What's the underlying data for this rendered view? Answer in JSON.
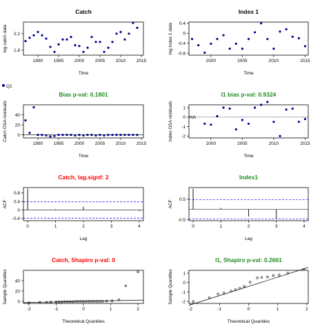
{
  "colors": {
    "black": "#000000",
    "green": "#228b22",
    "red": "#ff0000",
    "blue": "#0000ff",
    "navy": "#00008b",
    "gray": "#808080"
  },
  "legend": {
    "label": "Q1"
  },
  "chart_data": [
    {
      "id": "catch",
      "type": "scatter",
      "title": "Catch",
      "title_color": "#000000",
      "xlabel": "Time",
      "ylabel": "log catch data",
      "xlim": [
        1986.5,
        2015.5
      ],
      "ylim": [
        1.68,
        2.48
      ],
      "xticks": [
        1990,
        1995,
        2000,
        2005,
        2010,
        2015
      ],
      "yticks": [
        1.8,
        2.2
      ],
      "series": [
        {
          "x": [
            1987,
            1988,
            1989,
            1990,
            1991,
            1992,
            1993,
            1994,
            1995,
            1996,
            1997,
            1998,
            1999,
            2000,
            2001,
            2002,
            2003,
            2004,
            2005,
            2006,
            2007,
            2008,
            2009,
            2010,
            2011,
            2012,
            2013,
            2014
          ],
          "y": [
            2.02,
            2.1,
            2.16,
            2.24,
            2.16,
            2.08,
            1.88,
            1.76,
            1.94,
            2.06,
            2.06,
            2.12,
            1.92,
            1.9,
            1.76,
            1.86,
            2.12,
            2.0,
            2.0,
            1.76,
            1.86,
            2.0,
            2.2,
            2.24,
            2.06,
            2.2,
            2.46,
            2.34
          ]
        }
      ]
    },
    {
      "id": "index1",
      "type": "scatter",
      "title": "Index 1",
      "title_color": "#000000",
      "xlabel": "Time",
      "ylabel": "log index 1 data",
      "xlim": [
        1996.5,
        2015.5
      ],
      "ylim": [
        -0.88,
        0.45
      ],
      "xticks": [
        2000,
        2005,
        2010,
        2015
      ],
      "yticks": [
        -0.8,
        -0.4,
        0.0,
        0.4
      ],
      "series": [
        {
          "x": [
            1997,
            1998,
            1999,
            2000,
            2001,
            2002,
            2003,
            2004,
            2005,
            2006,
            2007,
            2008,
            2009,
            2010,
            2011,
            2012,
            2013,
            2014,
            2015
          ],
          "y": [
            -0.23,
            -0.48,
            -0.78,
            -0.42,
            -0.23,
            -0.08,
            -0.62,
            -0.42,
            -0.62,
            -0.23,
            0.04,
            0.4,
            -0.23,
            -0.62,
            0.07,
            0.16,
            -0.14,
            -0.2,
            -0.52
          ]
        }
      ]
    },
    {
      "id": "bias-catch",
      "type": "scatter",
      "title": "Bias p-val: 0.1801",
      "title_color": "#228b22",
      "xlabel": "Time",
      "ylabel": "Catch OSA residuals",
      "xlim": [
        1986.5,
        2015.5
      ],
      "ylim": [
        -6,
        60
      ],
      "xticks": [
        1990,
        1995,
        2000,
        2005,
        2010,
        2015
      ],
      "yticks": [
        0,
        20,
        40
      ],
      "hline": 0,
      "series": [
        {
          "x": [
            1987,
            1988,
            1989,
            1990,
            1991,
            1992,
            1993,
            1994,
            1995,
            1996,
            1997,
            1998,
            1999,
            2000,
            2001,
            2002,
            2003,
            2004,
            2005,
            2006,
            2007,
            2008,
            2009,
            2010,
            2011,
            2012,
            2013,
            2014
          ],
          "y": [
            29,
            4,
            55,
            0,
            0,
            -1,
            -3,
            -2,
            0,
            0,
            0,
            0,
            -1,
            0,
            -1,
            0,
            0,
            -1,
            0,
            -1,
            0,
            0,
            0,
            0,
            0,
            0,
            0,
            0
          ]
        }
      ]
    },
    {
      "id": "bias-index",
      "type": "scatter",
      "title": "I1 bias p-val: 0.9324",
      "title_color": "#228b22",
      "xlabel": "Time",
      "ylabel": "Index OSA residuals",
      "xlim": [
        1996.5,
        2015.5
      ],
      "ylim": [
        -2.2,
        1.3
      ],
      "xticks": [
        2000,
        2005,
        2010,
        2015
      ],
      "yticks": [
        -2,
        -1,
        0,
        1
      ],
      "hline": 0,
      "hline_label": "NA",
      "series": [
        {
          "x": [
            1999,
            2000,
            2001,
            2002,
            2003,
            2004,
            2005,
            2006,
            2007,
            2008,
            2009,
            2010,
            2011,
            2012,
            2013,
            2014,
            2015
          ],
          "y": [
            -0.7,
            -0.8,
            0.1,
            1.0,
            0.9,
            -1.3,
            -0.3,
            -0.7,
            1.0,
            1.3,
            1.6,
            -0.5,
            -2.0,
            0.8,
            0.9,
            -0.5,
            -0.2
          ]
        }
      ]
    },
    {
      "id": "acf-catch",
      "type": "bar",
      "title": "Catch, lag.signf: 2",
      "title_color": "#ff0000",
      "xlabel": "Lag",
      "ylabel": "ACF",
      "xlim": [
        -0.15,
        4.15
      ],
      "ylim": [
        -0.5,
        1.05
      ],
      "xticks": [
        0,
        1,
        2,
        3,
        4
      ],
      "yticks": [
        -0.4,
        0.0,
        0.4,
        0.8
      ],
      "conf": 0.38,
      "hline": 0,
      "series": [
        {
          "x": [
            0,
            1,
            2,
            3,
            4
          ],
          "y": [
            1.0,
            0.03,
            0.15,
            -0.02,
            -0.05
          ]
        }
      ]
    },
    {
      "id": "acf-index",
      "type": "bar",
      "title": "Index1",
      "title_color": "#228b22",
      "xlabel": "Lag",
      "ylabel": "ACF",
      "xlim": [
        -0.15,
        4.15
      ],
      "ylim": [
        -0.55,
        1.05
      ],
      "xticks": [
        0,
        1,
        2,
        3,
        4
      ],
      "yticks": [
        -0.5,
        0.5
      ],
      "conf": 0.46,
      "hline": 0,
      "series": [
        {
          "x": [
            0,
            1,
            2,
            3,
            4
          ],
          "y": [
            1.0,
            0.07,
            -0.35,
            -0.45,
            -0.02
          ]
        }
      ]
    },
    {
      "id": "qq-catch",
      "type": "scatter",
      "title": "Catch, Shapiro p-val: 0",
      "title_color": "#ff0000",
      "xlabel": "Theoretical Quantiles",
      "ylabel": "Sample Quantiles",
      "xlim": [
        -2.2,
        2.2
      ],
      "ylim": [
        -4,
        60
      ],
      "xticks": [
        -2,
        -1,
        0,
        1,
        2
      ],
      "yticks": [
        0,
        20,
        40
      ],
      "qqline": [
        [
          -2.2,
          -2.5
        ],
        [
          2.2,
          2.5
        ]
      ],
      "series": [
        {
          "x": [
            -2.0,
            -1.6,
            -1.35,
            -1.2,
            -1.0,
            -0.9,
            -0.8,
            -0.7,
            -0.6,
            -0.5,
            -0.4,
            -0.3,
            -0.2,
            -0.1,
            0.0,
            0.1,
            0.2,
            0.3,
            0.4,
            0.5,
            0.6,
            0.7,
            0.85,
            1.05,
            1.3,
            1.55,
            2.0
          ],
          "y": [
            -3,
            -2,
            -2,
            -1.5,
            -1,
            -1,
            -1,
            -0.5,
            -0.5,
            -0.5,
            -0.5,
            0,
            0,
            0,
            0,
            0,
            0,
            0,
            0,
            0,
            0,
            0,
            0.5,
            1,
            3,
            30,
            57
          ]
        }
      ]
    },
    {
      "id": "qq-index",
      "type": "scatter",
      "title": "I1, Shapiro p-val: 0.2661",
      "title_color": "#228b22",
      "xlabel": "Theoretical Quantiles",
      "ylabel": "Sample Quantiles",
      "xlim": [
        -2.05,
        2.05
      ],
      "ylim": [
        -2.2,
        1.3
      ],
      "xticks": [
        -2,
        -1,
        0,
        1,
        2
      ],
      "yticks": [
        -2,
        -1,
        0,
        1
      ],
      "qqline": [
        [
          -2.05,
          -2.4
        ],
        [
          2.05,
          1.6
        ]
      ],
      "series": [
        {
          "x": [
            -1.9,
            -1.35,
            -1.05,
            -0.85,
            -0.6,
            -0.45,
            -0.3,
            -0.15,
            0.05,
            0.3,
            0.45,
            0.65,
            0.85,
            1.05,
            1.35,
            1.9
          ],
          "y": [
            -2.0,
            -1.6,
            -1.2,
            -1.1,
            -0.9,
            -0.75,
            -0.6,
            -0.4,
            0.05,
            0.5,
            0.55,
            0.6,
            0.75,
            0.8,
            1.0,
            1.4
          ]
        }
      ]
    }
  ]
}
